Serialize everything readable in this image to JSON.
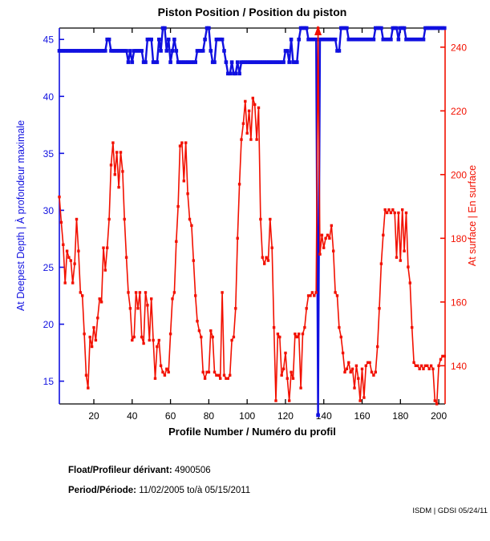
{
  "figure_title": "Piston Position / Position du piston",
  "footer": {
    "float_label": "Float/Profileur dérivant:",
    "float_value": "4900506",
    "period_label": "Period/Période:",
    "period_value": "11/02/2005 to/à 05/15/2011",
    "credit": "ISDM | GDSI 05/24/11"
  },
  "colors": {
    "blue": "#1010e0",
    "red": "#f21000",
    "black": "#000000"
  },
  "chart_data": {
    "type": "line",
    "title": "Piston Position / Position du piston",
    "xlabel": "Profile Number / Numéro du profil",
    "grid": false,
    "legend": "none",
    "x_axis": {
      "range": [
        2,
        203.3
      ],
      "ticks": [
        20,
        40,
        60,
        80,
        100,
        120,
        140,
        160,
        180,
        200
      ],
      "color": "#000000"
    },
    "left_axis": {
      "label": "At Deepest Depth | À profondeur maximale",
      "range": [
        13,
        46
      ],
      "ticks": [
        15,
        20,
        25,
        30,
        35,
        40,
        45
      ],
      "color": "#1010e0"
    },
    "right_axis": {
      "label": "At surface | En surface",
      "range": [
        128,
        246
      ],
      "ticks": [
        140,
        160,
        180,
        200,
        220,
        240
      ],
      "color": "#f21000"
    },
    "annotations": [
      {
        "type": "arrow-up",
        "profile": 137,
        "color": "#f21000",
        "note": "off-scale spike at profile 137"
      }
    ],
    "series": [
      {
        "name": "At Deepest Depth | À profondeur maximale",
        "axis": "left",
        "color": "#1010e0",
        "line_width": 2.4,
        "marker": "square",
        "marker_size": 4.6,
        "start_profile": 2,
        "values": [
          44,
          44,
          44,
          44,
          44,
          44,
          44,
          44,
          44,
          44,
          44,
          44,
          44,
          44,
          44,
          44,
          44,
          44,
          44,
          44,
          44,
          44,
          44,
          44,
          44,
          45,
          45,
          44,
          44,
          44,
          44,
          44,
          44,
          44,
          44,
          44,
          43,
          44,
          43,
          44,
          44,
          44,
          44,
          44,
          43,
          43,
          45,
          45,
          45,
          43,
          43,
          43,
          45,
          44,
          46,
          46,
          44,
          45,
          43,
          44,
          45,
          44,
          43,
          43,
          43,
          43,
          43,
          43,
          43,
          43,
          43,
          43,
          44,
          44,
          44,
          44,
          45,
          46,
          46,
          44,
          43,
          43,
          45,
          45,
          45,
          45,
          44,
          43,
          42,
          42,
          43,
          42,
          42,
          43,
          42,
          43,
          43,
          43,
          43,
          43,
          43,
          43,
          43,
          43,
          43,
          43,
          43,
          43,
          43,
          43,
          43,
          43,
          43,
          43,
          43,
          43,
          43,
          43,
          44,
          44,
          43,
          45,
          43,
          43,
          43,
          45,
          46,
          46,
          46,
          46,
          45,
          45,
          45,
          45,
          45,
          12,
          45,
          45,
          45,
          45,
          45,
          45,
          45,
          45,
          45,
          44,
          44,
          46,
          46,
          46,
          46,
          45,
          45,
          45,
          45,
          45,
          45,
          45,
          45,
          45,
          45,
          45,
          45,
          45,
          45,
          46,
          46,
          46,
          46,
          45,
          45,
          45,
          45,
          45,
          46,
          46,
          46,
          45,
          46,
          46,
          46,
          45,
          45,
          45,
          45,
          45,
          45,
          45,
          45,
          45,
          45,
          46,
          46,
          46,
          46,
          46,
          46,
          46,
          46,
          46,
          46,
          46
        ]
      },
      {
        "name": "At surface | En surface",
        "axis": "right",
        "color": "#f21000",
        "line_width": 1.6,
        "marker": "square",
        "marker_size": 3.4,
        "start_profile": 2,
        "values": [
          193,
          185,
          178,
          166,
          176,
          174,
          173,
          166,
          172,
          186,
          176,
          163,
          162,
          150,
          137,
          133,
          149,
          146,
          152,
          148,
          155,
          161,
          160,
          177,
          170,
          177,
          186,
          203,
          210,
          200,
          207,
          196,
          207,
          201,
          186,
          174,
          163,
          158,
          148,
          149,
          163,
          158,
          163,
          149,
          147,
          163,
          159,
          148,
          161,
          148,
          136,
          146,
          148,
          140,
          138,
          137,
          139,
          138,
          150,
          161,
          163,
          179,
          190,
          209,
          210,
          198,
          210,
          194,
          186,
          184,
          173,
          162,
          154,
          151,
          149,
          138,
          136,
          138,
          138,
          151,
          149,
          138,
          137,
          137,
          136,
          163,
          137,
          136,
          136,
          137,
          148,
          149,
          158,
          180,
          197,
          211,
          216,
          223,
          213,
          220,
          211,
          224,
          222,
          211,
          221,
          186,
          174,
          172,
          174,
          173,
          186,
          177,
          152,
          129,
          150,
          149,
          137,
          139,
          144,
          136,
          129,
          138,
          136,
          150,
          149,
          150,
          133,
          150,
          152,
          158,
          162,
          162,
          163,
          162,
          163,
          246,
          175,
          181,
          177,
          180,
          181,
          180,
          184,
          176,
          163,
          162,
          152,
          149,
          144,
          138,
          139,
          141,
          138,
          139,
          133,
          140,
          136,
          129,
          139,
          130,
          140,
          141,
          141,
          138,
          137,
          138,
          146,
          158,
          172,
          181,
          189,
          188,
          189,
          188,
          189,
          188,
          174,
          188,
          173,
          189,
          176,
          188,
          171,
          166,
          152,
          141,
          140,
          140,
          139,
          140,
          139,
          140,
          140,
          139,
          140,
          139,
          129,
          128,
          140,
          142,
          143,
          143
        ]
      }
    ]
  }
}
